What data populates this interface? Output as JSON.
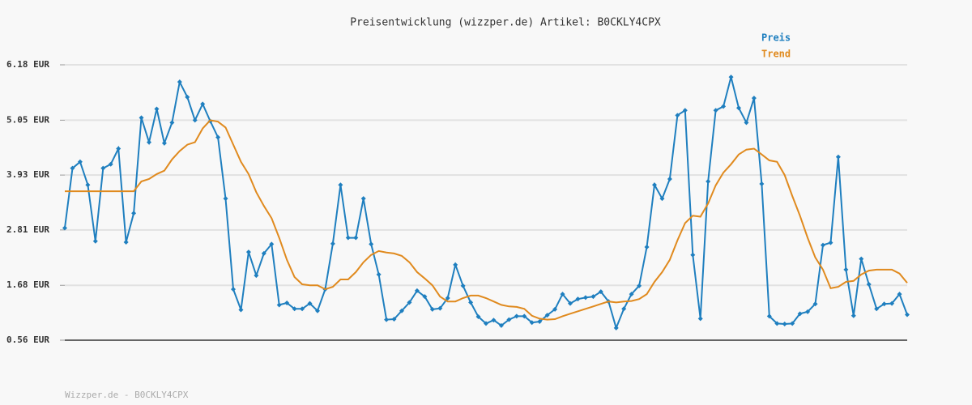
{
  "chart_data": {
    "type": "line",
    "title": "Preisentwicklung (wizzper.de) Artikel: B0CKLY4CPX",
    "footer": "Wizzper.de - B0CKLY4CPX",
    "legend": "top-right",
    "grid": true,
    "ylim": [
      0.56,
      6.18
    ],
    "yticks": [
      {
        "value": 0.56,
        "label": "0.56 EUR"
      },
      {
        "value": 1.68,
        "label": "1.68 EUR"
      },
      {
        "value": 2.81,
        "label": "2.81 EUR"
      },
      {
        "value": 3.93,
        "label": "3.93 EUR"
      },
      {
        "value": 5.05,
        "label": "5.05 EUR"
      },
      {
        "value": 6.18,
        "label": "6.18 EUR"
      }
    ],
    "series": [
      {
        "name": "Preis",
        "color": "#1f7fbf",
        "markers": true,
        "values": [
          2.85,
          4.07,
          4.2,
          3.73,
          2.58,
          4.07,
          4.15,
          4.47,
          2.56,
          3.15,
          5.1,
          4.6,
          5.28,
          4.58,
          5.0,
          5.83,
          5.52,
          5.05,
          5.38,
          5.03,
          4.7,
          3.45,
          1.6,
          1.18,
          2.36,
          1.88,
          2.33,
          2.52,
          1.28,
          1.32,
          1.2,
          1.2,
          1.31,
          1.16,
          1.6,
          2.53,
          3.73,
          2.65,
          2.65,
          3.45,
          2.52,
          1.9,
          0.98,
          0.99,
          1.16,
          1.33,
          1.57,
          1.45,
          1.19,
          1.21,
          1.42,
          2.1,
          1.67,
          1.33,
          1.04,
          0.9,
          0.97,
          0.86,
          0.98,
          1.05,
          1.05,
          0.92,
          0.94,
          1.07,
          1.19,
          1.5,
          1.31,
          1.4,
          1.43,
          1.45,
          1.55,
          1.35,
          0.81,
          1.2,
          1.5,
          1.67,
          2.46,
          3.73,
          3.45,
          3.85,
          5.15,
          5.25,
          2.3,
          1.0,
          3.8,
          5.25,
          5.33,
          5.93,
          5.3,
          5.0,
          5.5,
          3.75,
          1.05,
          0.9,
          0.89,
          0.9,
          1.1,
          1.14,
          1.3,
          2.5,
          2.55,
          4.3,
          2.0,
          1.06,
          2.22,
          1.7,
          1.2,
          1.3,
          1.31,
          1.5,
          1.08
        ]
      },
      {
        "name": "Trend",
        "color": "#e08a1e",
        "markers": false,
        "values": [
          3.6,
          3.6,
          3.6,
          3.6,
          3.6,
          3.6,
          3.6,
          3.6,
          3.6,
          3.6,
          3.8,
          3.85,
          3.95,
          4.02,
          4.25,
          4.42,
          4.55,
          4.6,
          4.88,
          5.05,
          5.02,
          4.9,
          4.55,
          4.2,
          3.95,
          3.58,
          3.3,
          3.05,
          2.65,
          2.2,
          1.85,
          1.7,
          1.68,
          1.68,
          1.6,
          1.65,
          1.8,
          1.8,
          1.95,
          2.15,
          2.3,
          2.38,
          2.35,
          2.33,
          2.28,
          2.15,
          1.95,
          1.82,
          1.68,
          1.45,
          1.35,
          1.35,
          1.42,
          1.47,
          1.47,
          1.42,
          1.35,
          1.28,
          1.25,
          1.24,
          1.2,
          1.06,
          1.0,
          0.98,
          0.99,
          1.05,
          1.1,
          1.15,
          1.2,
          1.25,
          1.3,
          1.35,
          1.33,
          1.35,
          1.36,
          1.4,
          1.5,
          1.75,
          1.95,
          2.2,
          2.6,
          2.95,
          3.1,
          3.08,
          3.35,
          3.72,
          3.98,
          4.15,
          4.35,
          4.45,
          4.47,
          4.35,
          4.23,
          4.2,
          3.93,
          3.5,
          3.1,
          2.65,
          2.25,
          2.0,
          1.62,
          1.65,
          1.75,
          1.77,
          1.9,
          1.98,
          2.0,
          2.0,
          2.0,
          1.92,
          1.73
        ]
      }
    ]
  }
}
